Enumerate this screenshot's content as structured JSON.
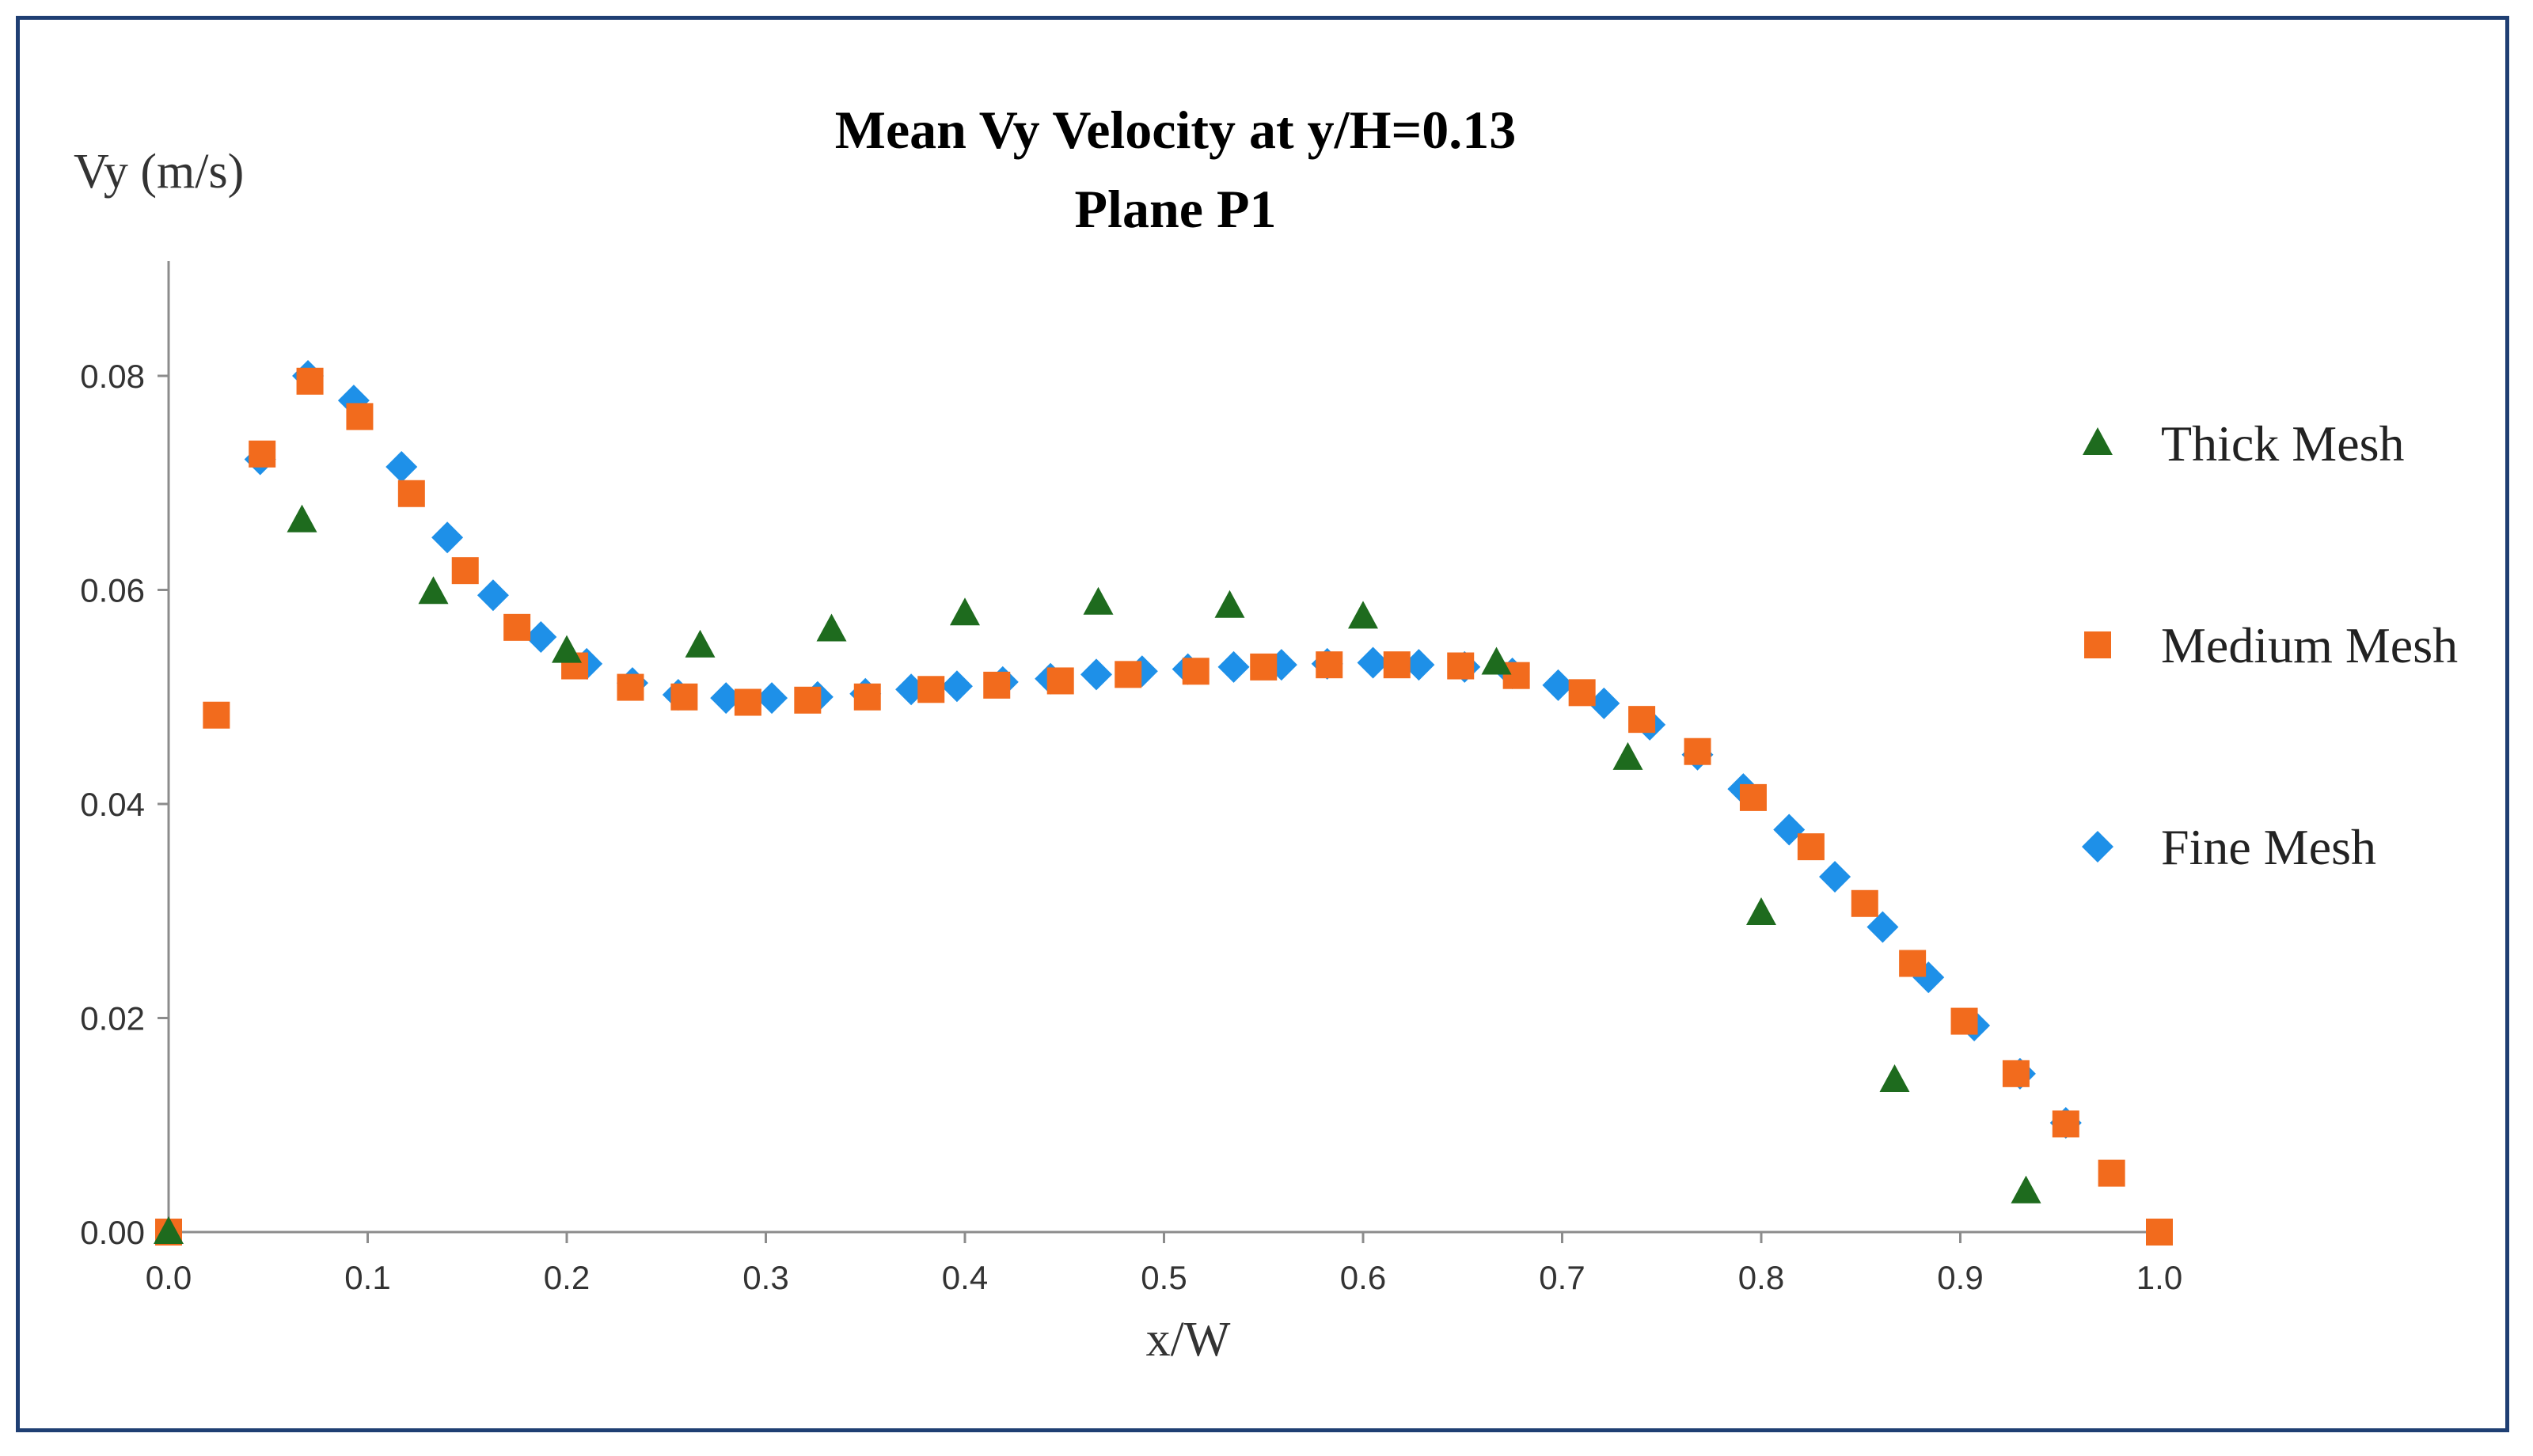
{
  "chart_data": {
    "type": "scatter",
    "title": "Mean Vy Velocity at y/H=0.13",
    "subtitle": "Plane P1",
    "xlabel": "x/W",
    "ylabel": "Vy (m/s)",
    "xlim": [
      0.0,
      1.0
    ],
    "ylim": [
      0.0,
      0.09
    ],
    "x_ticks": [
      "0.0",
      "0.1",
      "0.2",
      "0.3",
      "0.4",
      "0.5",
      "0.6",
      "0.7",
      "0.8",
      "0.9",
      "1.0"
    ],
    "y_ticks": [
      "0.00",
      "0.02",
      "0.04",
      "0.06",
      "0.08"
    ],
    "grid": false,
    "legend_position": "right",
    "series": [
      {
        "name": "Thick Mesh",
        "marker": "triangle",
        "color": "#1e6b1e",
        "x": [
          0.0,
          0.067,
          0.133,
          0.2,
          0.267,
          0.333,
          0.4,
          0.467,
          0.533,
          0.6,
          0.667,
          0.733,
          0.8,
          0.867,
          0.933
        ],
        "y": [
          0.0,
          0.0665,
          0.0598,
          0.0543,
          0.0548,
          0.0563,
          0.0578,
          0.0588,
          0.0585,
          0.0575,
          0.0532,
          0.0443,
          0.0298,
          0.0142,
          0.0038
        ]
      },
      {
        "name": "Medium Mesh",
        "marker": "square",
        "color": "#f26b1d",
        "x": [
          0.0,
          0.024,
          0.047,
          0.071,
          0.096,
          0.122,
          0.149,
          0.175,
          0.204,
          0.232,
          0.259,
          0.291,
          0.321,
          0.351,
          0.383,
          0.416,
          0.448,
          0.482,
          0.516,
          0.55,
          0.583,
          0.617,
          0.649,
          0.677,
          0.71,
          0.74,
          0.768,
          0.796,
          0.825,
          0.852,
          0.876,
          0.902,
          0.928,
          0.953,
          0.976,
          1.0
        ],
        "y": [
          0.0,
          0.0483,
          0.0727,
          0.0795,
          0.0762,
          0.069,
          0.0618,
          0.0565,
          0.0529,
          0.0509,
          0.05,
          0.0495,
          0.0497,
          0.05,
          0.0507,
          0.0511,
          0.0515,
          0.0521,
          0.0524,
          0.0528,
          0.053,
          0.053,
          0.0529,
          0.052,
          0.0504,
          0.0479,
          0.0449,
          0.0406,
          0.036,
          0.0307,
          0.0251,
          0.0197,
          0.0148,
          0.0101,
          0.0055,
          0.0
        ]
      },
      {
        "name": "Fine Mesh",
        "marker": "diamond",
        "color": "#1e90e8",
        "x": [
          0.046,
          0.07,
          0.093,
          0.117,
          0.14,
          0.163,
          0.187,
          0.21,
          0.233,
          0.256,
          0.28,
          0.303,
          0.326,
          0.35,
          0.373,
          0.396,
          0.419,
          0.443,
          0.466,
          0.489,
          0.512,
          0.535,
          0.559,
          0.582,
          0.605,
          0.628,
          0.651,
          0.675,
          0.698,
          0.721,
          0.744,
          0.768,
          0.791,
          0.814,
          0.837,
          0.861,
          0.884,
          0.907,
          0.93,
          0.953
        ],
        "y": [
          0.0722,
          0.08,
          0.0777,
          0.0715,
          0.0649,
          0.0595,
          0.0556,
          0.0531,
          0.0513,
          0.0502,
          0.0499,
          0.0499,
          0.05,
          0.0503,
          0.0507,
          0.051,
          0.0514,
          0.0517,
          0.0521,
          0.0524,
          0.0526,
          0.0528,
          0.053,
          0.0531,
          0.0532,
          0.053,
          0.0528,
          0.0522,
          0.0511,
          0.0494,
          0.0474,
          0.0446,
          0.0414,
          0.0376,
          0.0332,
          0.0285,
          0.0238,
          0.0193,
          0.0148,
          0.0102
        ]
      }
    ]
  }
}
